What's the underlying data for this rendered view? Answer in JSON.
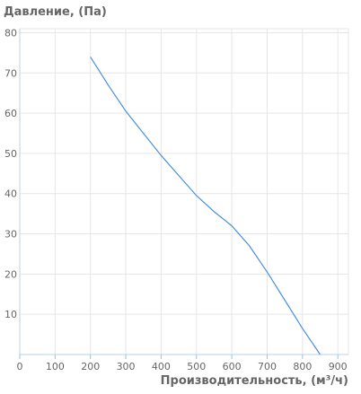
{
  "chart_data": {
    "type": "line",
    "title": "",
    "ylabel": "Давление, (Па)",
    "xlabel": "Производительность, (м³/ч)",
    "xlim": [
      0,
      930
    ],
    "ylim": [
      0,
      81
    ],
    "x_ticks": [
      0,
      100,
      200,
      300,
      400,
      500,
      600,
      700,
      800,
      900
    ],
    "y_ticks": [
      10,
      20,
      30,
      40,
      50,
      60,
      70,
      80
    ],
    "grid": true,
    "legend": "none",
    "series": [
      {
        "color": "#4a90d9",
        "x": [
          200,
          250,
          300,
          350,
          400,
          450,
          500,
          550,
          600,
          650,
          700,
          750,
          800,
          850
        ],
        "y": [
          74,
          67,
          60.5,
          55,
          49.5,
          44.5,
          39.5,
          35.5,
          32,
          27,
          20.5,
          13.5,
          6.5,
          0
        ]
      }
    ]
  }
}
